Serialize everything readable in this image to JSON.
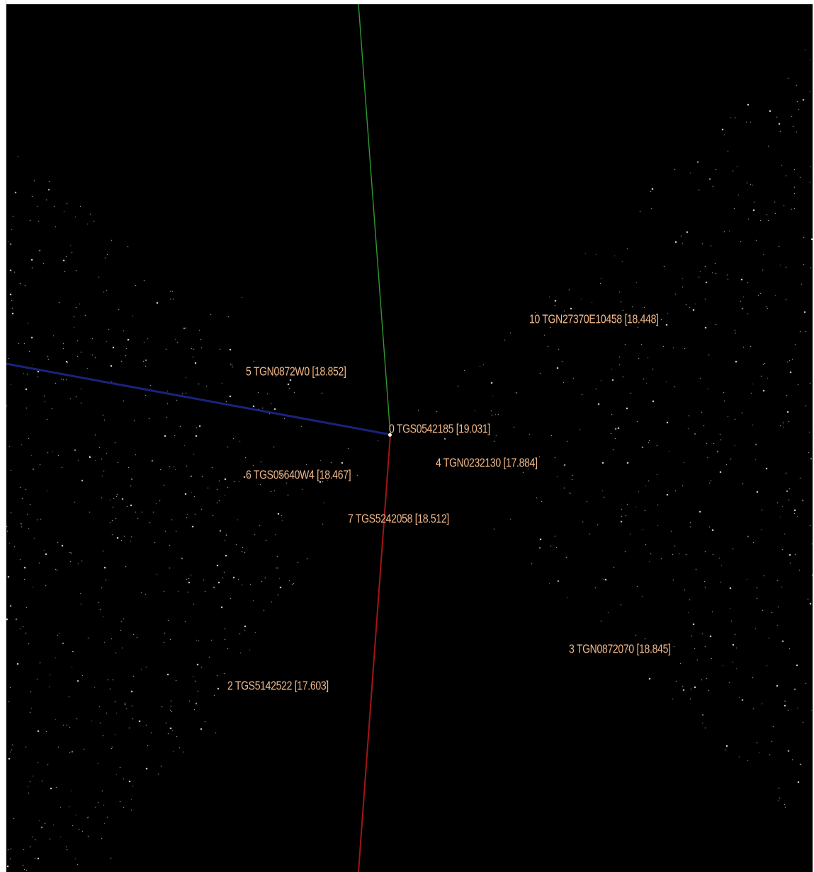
{
  "scene": {
    "background": "#000000",
    "point_color": "#ffffff",
    "label_color": "#f3b98a",
    "axes": {
      "x_axis_color": "#1a237e",
      "y_axis_color": "#2e9a2e",
      "z_axis_color": "#a31515"
    }
  },
  "labels": [
    {
      "text": "10 TGN27370E10458 [18.448]"
    },
    {
      "text": "5 TGN0872W0 [18.852]"
    },
    {
      "text": "0 TGS0542185 [19.031]"
    },
    {
      "text": "4 TGN0232130 [17.884]"
    },
    {
      "text": "6 TGS05640W4 [18.467]"
    },
    {
      "text": "7 TGS5242058 [18.512]"
    },
    {
      "text": "3 TGN0872070 [18.845]"
    },
    {
      "text": "2 TGS5142522 [17.603]"
    }
  ]
}
